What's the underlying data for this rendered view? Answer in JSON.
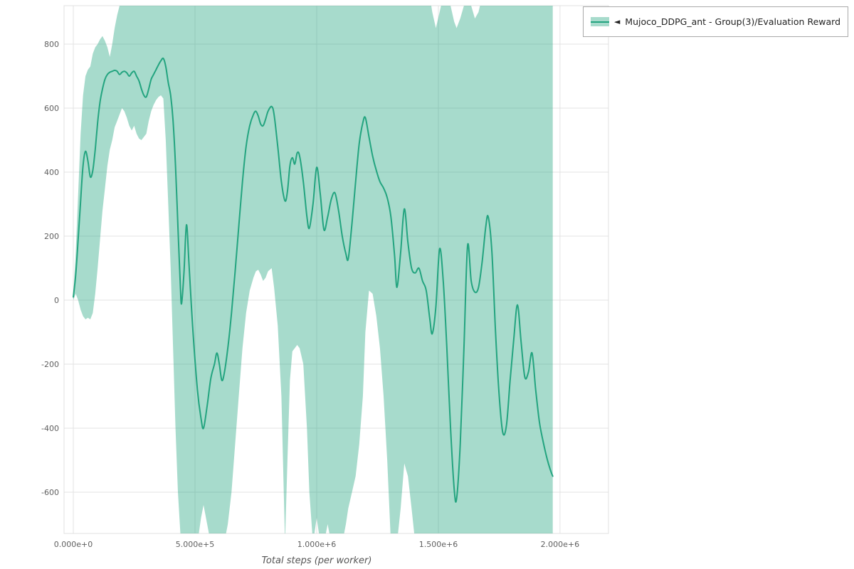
{
  "legend": {
    "collapse_icon": "◄",
    "label": "Mujoco_DDPG_ant - Group(3)/Evaluation Reward"
  },
  "chart_data": {
    "type": "line",
    "title": "",
    "xlabel": "Total steps (per worker)",
    "ylabel": "",
    "grid": true,
    "legend_position": "top-right-outside",
    "xlim": [
      -38000,
      2199000
    ],
    "ylim": [
      -729,
      920
    ],
    "x_ticks": {
      "values": [
        0,
        500000,
        1000000,
        1500000,
        2000000
      ],
      "labels": [
        "0.000e+0",
        "5.000e+5",
        "1.000e+6",
        "1.500e+6",
        "2.000e+6"
      ]
    },
    "y_ticks": {
      "values": [
        -600,
        -400,
        -200,
        0,
        200,
        400,
        600,
        800
      ],
      "labels": [
        "-600",
        "-400",
        "-200",
        "0",
        "200",
        "400",
        "600",
        "800"
      ]
    },
    "colors": {
      "line": "#23a47f",
      "band": "#23a47f",
      "band_opacity": 0.4,
      "grid": "#e3e3e3",
      "plot_border": "#e0e0e0",
      "tick_label": "#5f5f5f",
      "axis_title": "#555555"
    },
    "series": [
      {
        "name": "Mujoco_DDPG_ant - Group(3)/Evaluation Reward",
        "x": [
          0,
          10000,
          20000,
          30000,
          40000,
          50000,
          60000,
          70000,
          80000,
          90000,
          100000,
          110000,
          120000,
          130000,
          140000,
          150000,
          160000,
          170000,
          180000,
          190000,
          200000,
          210000,
          220000,
          230000,
          240000,
          250000,
          260000,
          270000,
          280000,
          290000,
          300000,
          310000,
          320000,
          330000,
          340000,
          350000,
          360000,
          370000,
          380000,
          390000,
          400000,
          410000,
          420000,
          430000,
          440000,
          445000,
          455000,
          465000,
          475000,
          490000,
          510000,
          525000,
          535000,
          550000,
          565000,
          580000,
          590000,
          600000,
          610000,
          620000,
          635000,
          650000,
          665000,
          680000,
          695000,
          710000,
          725000,
          740000,
          750000,
          760000,
          770000,
          780000,
          790000,
          800000,
          815000,
          825000,
          840000,
          855000,
          870000,
          880000,
          890000,
          900000,
          910000,
          920000,
          930000,
          945000,
          960000,
          970000,
          985000,
          1000000,
          1015000,
          1030000,
          1045000,
          1060000,
          1075000,
          1090000,
          1105000,
          1120000,
          1130000,
          1145000,
          1160000,
          1175000,
          1190000,
          1200000,
          1215000,
          1230000,
          1245000,
          1260000,
          1275000,
          1290000,
          1305000,
          1320000,
          1330000,
          1345000,
          1360000,
          1375000,
          1390000,
          1405000,
          1420000,
          1435000,
          1450000,
          1465000,
          1475000,
          1490000,
          1505000,
          1520000,
          1535000,
          1550000,
          1565000,
          1575000,
          1590000,
          1605000,
          1620000,
          1635000,
          1650000,
          1665000,
          1680000,
          1695000,
          1705000,
          1720000,
          1735000,
          1750000,
          1765000,
          1780000,
          1795000,
          1810000,
          1825000,
          1840000,
          1855000,
          1870000,
          1885000,
          1900000,
          1915000,
          1930000,
          1945000,
          1960000,
          1970000
        ],
        "mean": [
          10,
          80,
          190,
          310,
          420,
          465,
          435,
          385,
          405,
          470,
          555,
          620,
          660,
          690,
          705,
          712,
          715,
          718,
          715,
          705,
          712,
          715,
          710,
          700,
          710,
          715,
          700,
          685,
          660,
          640,
          635,
          660,
          690,
          705,
          720,
          735,
          748,
          755,
          730,
          680,
          640,
          560,
          420,
          230,
          40,
          -10,
          90,
          235,
          120,
          -80,
          -280,
          -370,
          -400,
          -330,
          -245,
          -200,
          -165,
          -200,
          -250,
          -230,
          -150,
          -40,
          90,
          230,
          370,
          480,
          545,
          580,
          590,
          575,
          550,
          545,
          565,
          590,
          605,
          580,
          480,
          370,
          310,
          340,
          420,
          445,
          425,
          460,
          450,
          370,
          260,
          225,
          300,
          415,
          330,
          220,
          260,
          315,
          335,
          280,
          200,
          145,
          130,
          240,
          370,
          490,
          555,
          570,
          510,
          450,
          405,
          370,
          350,
          320,
          260,
          140,
          40,
          150,
          285,
          180,
          100,
          85,
          100,
          60,
          30,
          -60,
          -105,
          -20,
          160,
          60,
          -150,
          -400,
          -590,
          -620,
          -450,
          -150,
          170,
          60,
          25,
          40,
          120,
          230,
          260,
          150,
          -100,
          -300,
          -415,
          -390,
          -250,
          -120,
          -15,
          -130,
          -240,
          -225,
          -165,
          -280,
          -380,
          -440,
          -490,
          -530,
          -550
        ],
        "band_lower": [
          0,
          20,
          0,
          -30,
          -50,
          -60,
          -55,
          -60,
          -40,
          20,
          100,
          190,
          280,
          350,
          420,
          470,
          500,
          540,
          560,
          580,
          600,
          590,
          570,
          545,
          530,
          545,
          520,
          505,
          500,
          510,
          520,
          560,
          590,
          610,
          625,
          635,
          640,
          630,
          500,
          300,
          100,
          -150,
          -400,
          -600,
          -730,
          -760,
          -760,
          -760,
          -760,
          -760,
          -760,
          -680,
          -640,
          -700,
          -760,
          -760,
          -760,
          -760,
          -760,
          -760,
          -700,
          -600,
          -450,
          -300,
          -150,
          -40,
          30,
          70,
          90,
          95,
          80,
          60,
          70,
          90,
          100,
          40,
          -80,
          -300,
          -760,
          -500,
          -250,
          -160,
          -150,
          -140,
          -150,
          -200,
          -400,
          -600,
          -760,
          -680,
          -760,
          -760,
          -700,
          -760,
          -760,
          -760,
          -760,
          -700,
          -650,
          -600,
          -550,
          -450,
          -300,
          -100,
          30,
          20,
          -50,
          -150,
          -300,
          -500,
          -760,
          -760,
          -760,
          -650,
          -510,
          -550,
          -650,
          -760,
          -760,
          -760,
          -760,
          -760,
          -760,
          -760,
          -760,
          -760,
          -760,
          -760,
          -760,
          -760,
          -760,
          -760,
          -760,
          -760,
          -760,
          -760,
          -760,
          -760,
          -760,
          -760,
          -760,
          -760,
          -760,
          -760,
          -760,
          -760,
          -760,
          -760,
          -760,
          -760,
          -760,
          -760,
          -760,
          -760,
          -760,
          -760,
          -760
        ],
        "band_upper": [
          20,
          150,
          330,
          520,
          640,
          700,
          720,
          730,
          770,
          790,
          800,
          815,
          825,
          810,
          790,
          760,
          800,
          850,
          890,
          920,
          950,
          950,
          950,
          950,
          950,
          950,
          950,
          950,
          950,
          950,
          950,
          950,
          950,
          950,
          950,
          950,
          950,
          950,
          950,
          950,
          950,
          950,
          950,
          950,
          950,
          950,
          950,
          950,
          950,
          950,
          950,
          950,
          950,
          950,
          950,
          950,
          950,
          950,
          950,
          950,
          950,
          950,
          950,
          950,
          950,
          950,
          950,
          950,
          950,
          950,
          950,
          950,
          950,
          950,
          950,
          950,
          950,
          950,
          950,
          950,
          950,
          950,
          950,
          950,
          950,
          950,
          950,
          950,
          950,
          950,
          950,
          950,
          950,
          950,
          950,
          950,
          950,
          950,
          950,
          950,
          950,
          950,
          950,
          950,
          950,
          950,
          950,
          950,
          950,
          950,
          950,
          950,
          950,
          950,
          950,
          950,
          950,
          950,
          950,
          950,
          950,
          950,
          900,
          850,
          900,
          950,
          950,
          920,
          870,
          850,
          880,
          920,
          950,
          920,
          880,
          900,
          950,
          950,
          950,
          950,
          950,
          950,
          950,
          950,
          950,
          950,
          950,
          950,
          950,
          950,
          950,
          950,
          950,
          950,
          950,
          950,
          950
        ]
      }
    ]
  }
}
